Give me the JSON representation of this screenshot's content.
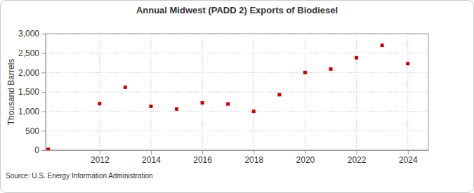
{
  "chart_data": {
    "type": "scatter",
    "title": "Annual Midwest (PADD 2) Exports of Biodiesel",
    "y_label": "Thousand Barrels",
    "source": "Source: U.S. Energy Information Administration",
    "x": [
      2010,
      2012,
      2013,
      2014,
      2015,
      2016,
      2017,
      2018,
      2019,
      2020,
      2021,
      2022,
      2023,
      2024
    ],
    "values": [
      20,
      1200,
      1620,
      1130,
      1060,
      1220,
      1190,
      1000,
      1430,
      2000,
      2090,
      2380,
      2700,
      2230
    ],
    "color": "#cc0000",
    "marker": "square",
    "xlim": [
      2009.9,
      2024.8
    ],
    "xticks": [
      2012,
      2014,
      2016,
      2018,
      2020,
      2022,
      2024
    ],
    "ylim": [
      0,
      3000
    ],
    "yticks": [
      0,
      500,
      {
        "value": 1000,
        "label": "1,000"
      },
      {
        "value": 1500,
        "label": "1,500"
      },
      {
        "value": 2000,
        "label": "2,000"
      },
      {
        "value": 2500,
        "label": "2,500"
      },
      {
        "value": 3000,
        "label": "3,000"
      }
    ],
    "grid": true
  }
}
